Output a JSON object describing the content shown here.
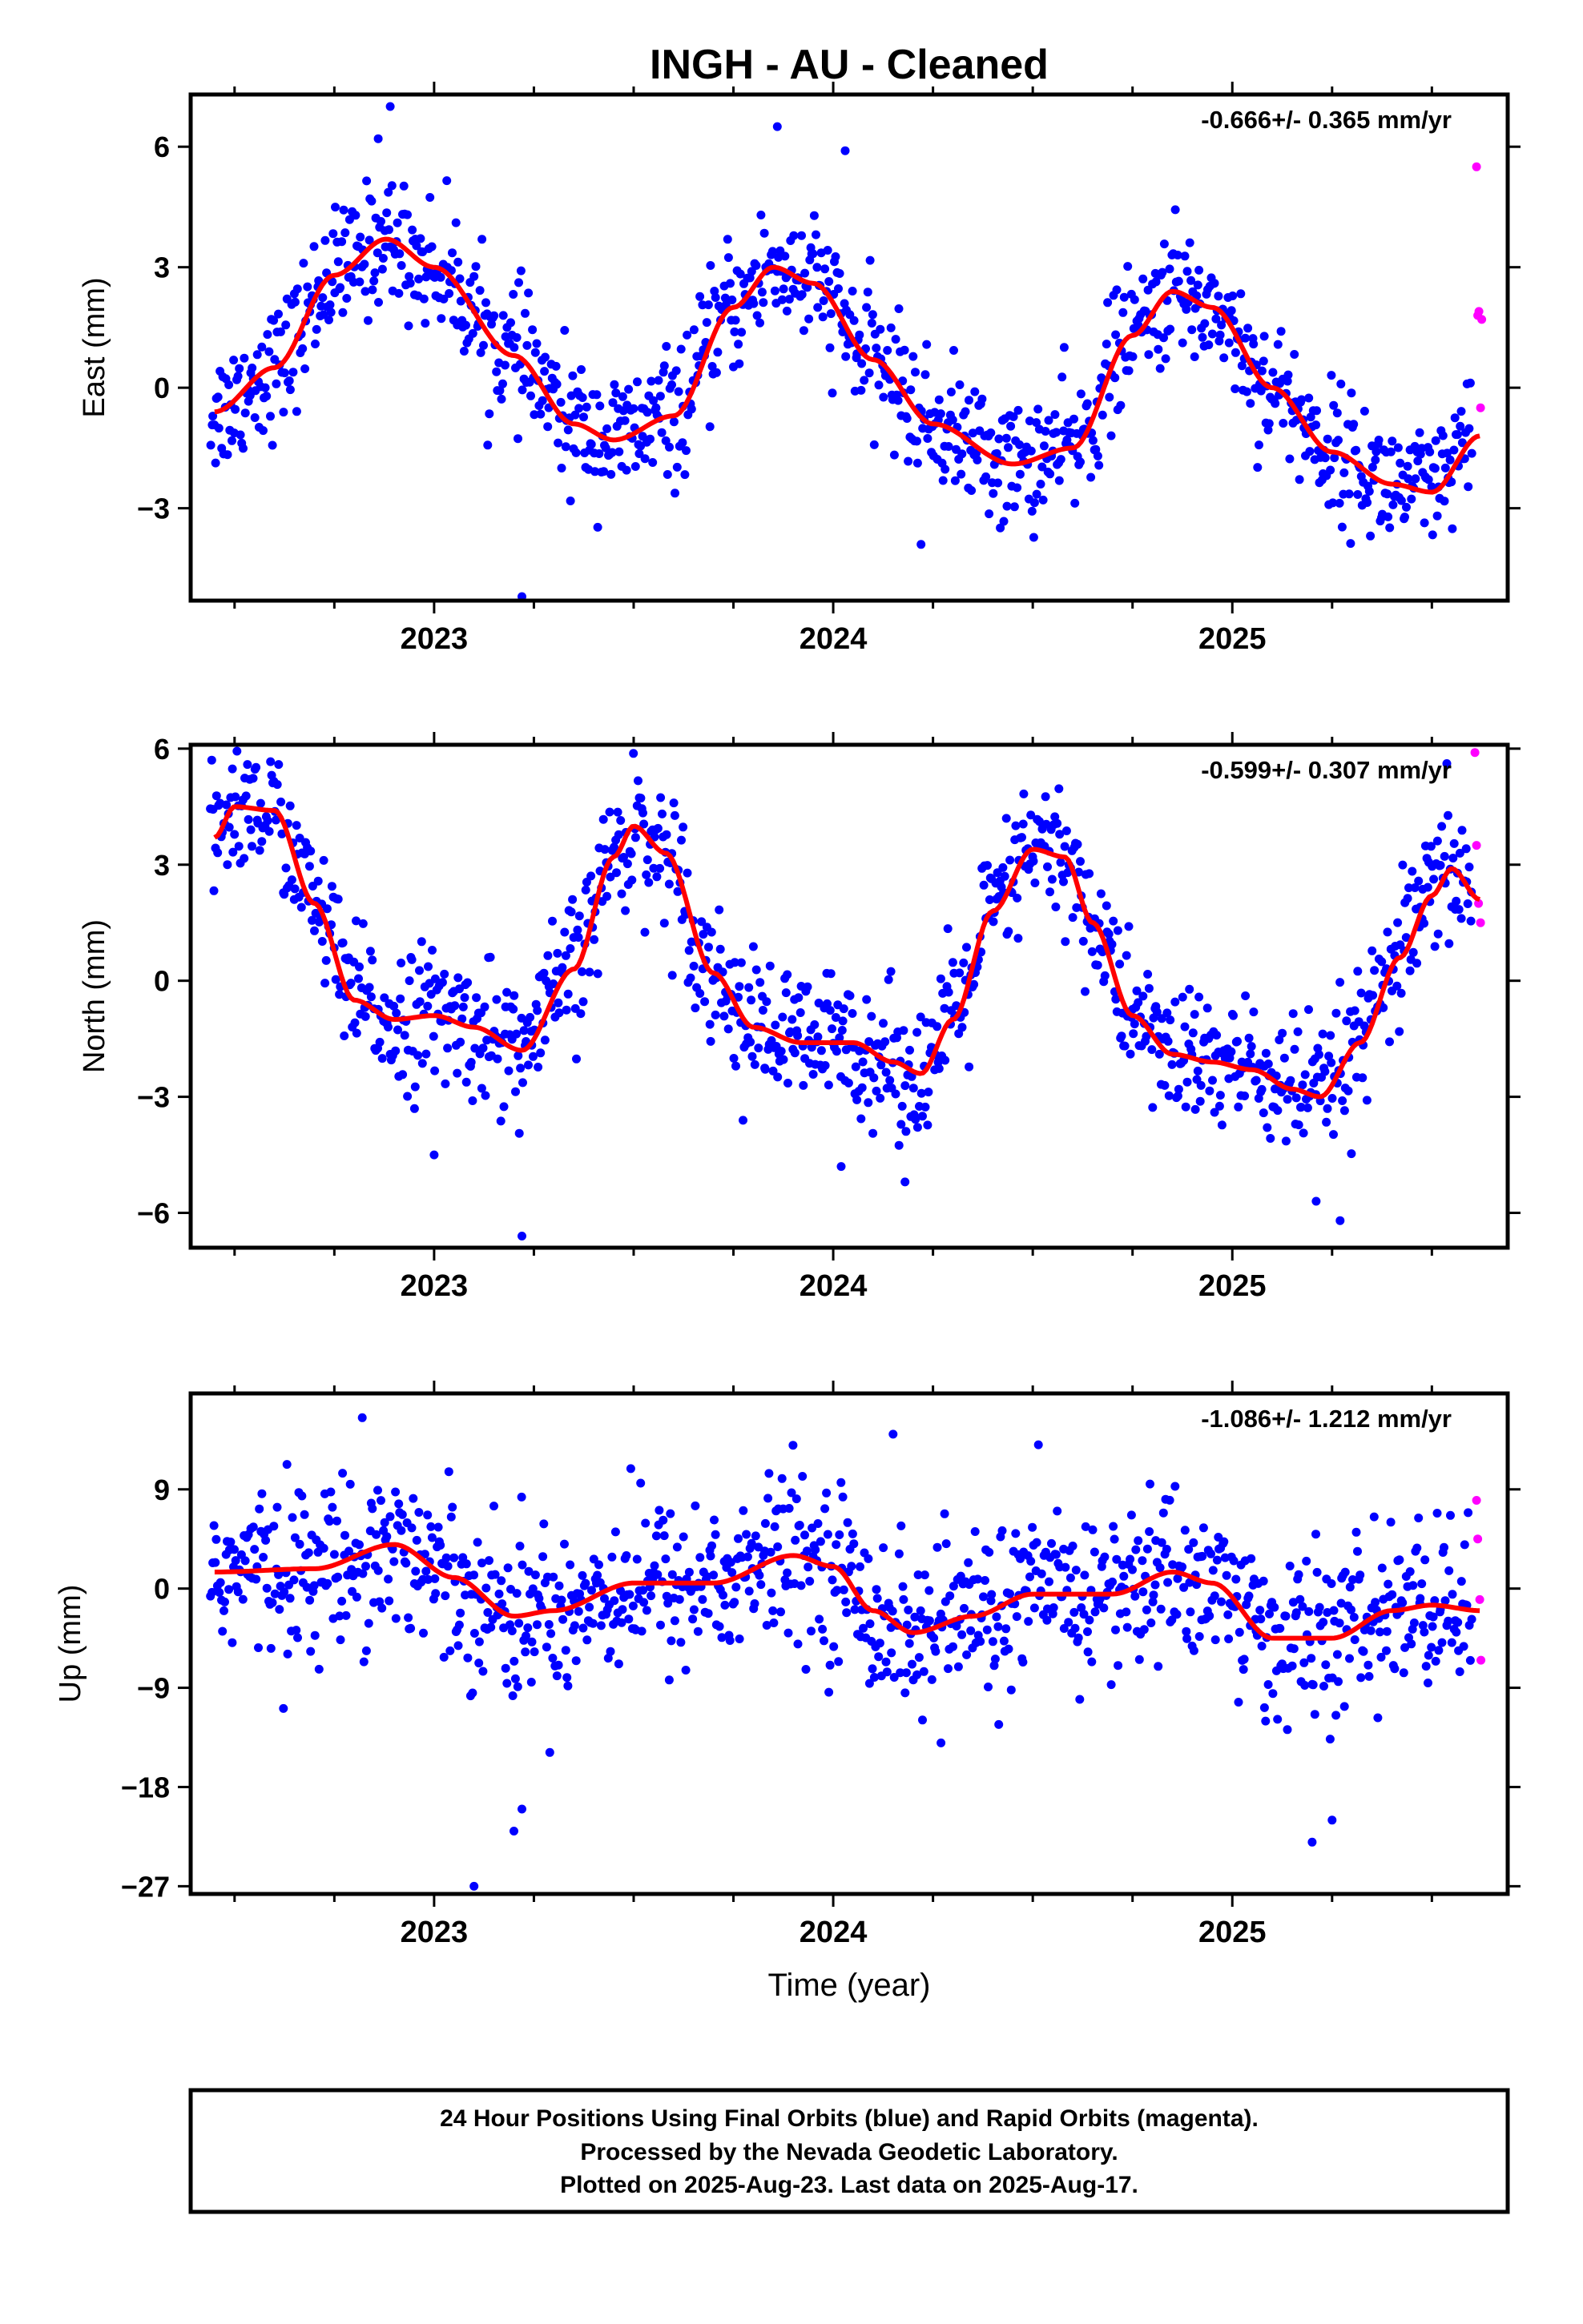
{
  "title": "INGH  - AU - Cleaned",
  "xlabel": "Time (year)",
  "footer": [
    "24 Hour Positions Using Final Orbits (blue) and Rapid Orbits (magenta).",
    "Processed by the Nevada Geodetic Laboratory.",
    "Plotted on 2025-Aug-23. Last data on 2025-Aug-17."
  ],
  "colors": {
    "final": "#0000ff",
    "rapid": "#ff00ff",
    "model": "#ff0000",
    "frame": "#000000"
  },
  "chart_data": [
    {
      "type": "scatter",
      "name": "east",
      "ylabel": "East (mm)",
      "rate": "-0.666+/- 0.365 mm/yr",
      "xlim": [
        2022.39,
        2025.69
      ],
      "ylim": [
        -5.3,
        7.3
      ],
      "yticks": [
        6,
        3,
        0,
        -3
      ],
      "xticks": [
        2023,
        2024,
        2025
      ],
      "grid": false,
      "model_curve": {
        "x": [
          2022.45,
          2022.6,
          2022.75,
          2022.88,
          2023.0,
          2023.2,
          2023.35,
          2023.45,
          2023.6,
          2023.75,
          2023.85,
          2023.95,
          2024.1,
          2024.25,
          2024.45,
          2024.6,
          2024.75,
          2024.85,
          2024.95,
          2025.1,
          2025.25,
          2025.4,
          2025.5,
          2025.62
        ],
        "y": [
          -0.6,
          0.5,
          2.8,
          3.7,
          3.0,
          0.8,
          -0.9,
          -1.3,
          -0.7,
          2.0,
          3.0,
          2.6,
          0.7,
          -0.9,
          -1.9,
          -1.5,
          1.3,
          2.4,
          2.0,
          0.0,
          -1.6,
          -2.4,
          -2.6,
          -1.2
        ]
      },
      "rapid_points": {
        "x": [
          2025.612,
          2025.615,
          2025.618,
          2025.622,
          2025.625
        ],
        "y": [
          5.5,
          1.8,
          1.9,
          -0.5,
          1.7
        ]
      },
      "final_noise": {
        "stdev": 0.8,
        "range_x": [
          2022.44,
          2025.6
        ]
      },
      "outliers": {
        "x": [
          2023.22,
          2022.89,
          2023.86,
          2024.03,
          2022.86,
          2024.22
        ],
        "y": [
          -5.2,
          7.0,
          6.5,
          5.9,
          6.2,
          -3.9
        ]
      }
    },
    {
      "type": "scatter",
      "name": "north",
      "ylabel": "North (mm)",
      "rate": "-0.599+/- 0.307 mm/yr",
      "xlim": [
        2022.39,
        2025.69
      ],
      "ylim": [
        -6.9,
        6.1
      ],
      "yticks": [
        6,
        3,
        0,
        -3,
        -6
      ],
      "xticks": [
        2023,
        2024,
        2025
      ],
      "grid": false,
      "model_curve": {
        "x": [
          2022.45,
          2022.5,
          2022.6,
          2022.7,
          2022.8,
          2022.9,
          2023.0,
          2023.1,
          2023.22,
          2023.35,
          2023.45,
          2023.5,
          2023.58,
          2023.7,
          2023.8,
          2023.92,
          2024.05,
          2024.15,
          2024.22,
          2024.3,
          2024.4,
          2024.5,
          2024.58,
          2024.65,
          2024.75,
          2024.85,
          2024.95,
          2025.05,
          2025.15,
          2025.22,
          2025.32,
          2025.42,
          2025.5,
          2025.55,
          2025.62
        ],
        "y": [
          3.7,
          4.5,
          4.4,
          2.0,
          -0.5,
          -1.0,
          -0.9,
          -1.2,
          -1.8,
          0.3,
          3.2,
          4.0,
          3.3,
          0.2,
          -1.2,
          -1.6,
          -1.6,
          -2.1,
          -2.4,
          -1.0,
          1.8,
          3.4,
          3.2,
          1.5,
          -0.9,
          -1.9,
          -2.1,
          -2.3,
          -2.8,
          -3.0,
          -1.6,
          0.6,
          2.2,
          2.9,
          2.1
        ]
      },
      "rapid_points": {
        "x": [
          2025.608,
          2025.612,
          2025.617,
          2025.622
        ],
        "y": [
          5.9,
          3.5,
          2.0,
          1.5
        ]
      },
      "final_noise": {
        "stdev": 0.9,
        "range_x": [
          2022.44,
          2025.6
        ]
      },
      "outliers": {
        "x": [
          2023.22,
          2023.0,
          2024.02,
          2024.18,
          2025.27,
          2025.21
        ],
        "y": [
          -6.6,
          -4.5,
          -4.8,
          -5.2,
          -6.2,
          -5.7
        ]
      }
    },
    {
      "type": "scatter",
      "name": "up",
      "ylabel": "Up (mm)",
      "rate": "-1.086+/- 1.212 mm/yr",
      "xlim": [
        2022.39,
        2025.69
      ],
      "ylim": [
        -27.7,
        17.7
      ],
      "yticks": [
        9,
        0,
        -9,
        -18,
        -27
      ],
      "xticks": [
        2023,
        2024,
        2025
      ],
      "grid": false,
      "model_curve": {
        "x": [
          2022.45,
          2022.7,
          2022.9,
          2023.05,
          2023.2,
          2023.3,
          2023.5,
          2023.7,
          2023.9,
          2024.0,
          2024.1,
          2024.2,
          2024.35,
          2024.5,
          2024.7,
          2024.85,
          2024.95,
          2025.1,
          2025.25,
          2025.4,
          2025.5,
          2025.62
        ],
        "y": [
          1.5,
          1.8,
          4.0,
          1.0,
          -2.5,
          -2.0,
          0.5,
          0.5,
          3.0,
          2.0,
          -2.0,
          -4.0,
          -2.5,
          -0.5,
          -0.5,
          1.5,
          0.5,
          -4.5,
          -4.5,
          -2.0,
          -1.5,
          -2.0
        ]
      },
      "rapid_points": {
        "x": [
          2025.612,
          2025.615,
          2025.62,
          2025.623
        ],
        "y": [
          8.0,
          4.5,
          -1.0,
          -6.5
        ]
      },
      "final_noise": {
        "stdev": 3.8,
        "range_x": [
          2022.44,
          2025.6
        ]
      },
      "outliers": {
        "x": [
          2023.1,
          2022.82,
          2023.2,
          2024.15,
          2025.2,
          2023.22,
          2024.27,
          2025.25
        ],
        "y": [
          -27,
          15.5,
          -22,
          14,
          -23,
          -20,
          -14,
          -21
        ]
      }
    }
  ]
}
